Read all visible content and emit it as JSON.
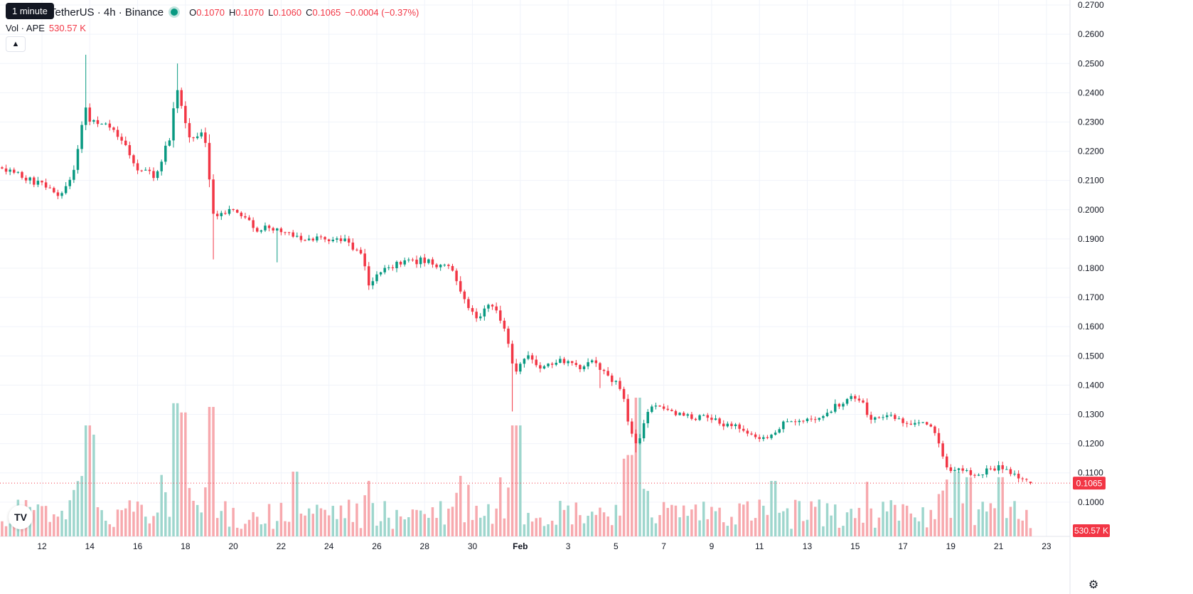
{
  "header": {
    "symbol_title": "TetherUS · 4h · Binance",
    "tooltip": "1 minute",
    "ohlc": {
      "o_label": "O",
      "o": "0.1070",
      "h_label": "H",
      "h": "0.1070",
      "l_label": "L",
      "l": "0.1060",
      "c_label": "C",
      "c": "0.1065"
    },
    "change": "−0.0004 (−0.37%)",
    "volume_label": "Vol · APE",
    "volume_value": "530.57 K"
  },
  "price_axis_badge": "0.1065",
  "volume_axis_badge": "530.57 K",
  "logo_text": "TV",
  "settings_icon": "gear-icon",
  "colors": {
    "up": "#089981",
    "down": "#F23645",
    "up_vol": "#9ED6CD",
    "down_vol": "#F7A9AE",
    "grid": "#F0F3FA"
  },
  "chart_data": {
    "type": "candlestick",
    "timeframe": "4h",
    "y_ticks": [
      "0.2700",
      "0.2600",
      "0.2500",
      "0.2400",
      "0.2300",
      "0.2200",
      "0.2100",
      "0.2000",
      "0.1900",
      "0.1800",
      "0.1700",
      "0.1600",
      "0.1500",
      "0.1400",
      "0.1300",
      "0.1200",
      "0.1100",
      "0.1000"
    ],
    "ylim": [
      0.0985,
      0.2705
    ],
    "x_ticks": [
      {
        "label": "12",
        "day": 12
      },
      {
        "label": "14",
        "day": 14
      },
      {
        "label": "16",
        "day": 16
      },
      {
        "label": "18",
        "day": 18
      },
      {
        "label": "20",
        "day": 20
      },
      {
        "label": "22",
        "day": 22
      },
      {
        "label": "24",
        "day": 24
      },
      {
        "label": "26",
        "day": 26
      },
      {
        "label": "28",
        "day": 28
      },
      {
        "label": "30",
        "day": 30
      },
      {
        "label": "Feb",
        "day": 32,
        "bold": true
      },
      {
        "label": "3",
        "day": 34
      },
      {
        "label": "5",
        "day": 36
      },
      {
        "label": "7",
        "day": 38
      },
      {
        "label": "9",
        "day": 40
      },
      {
        "label": "11",
        "day": 42
      },
      {
        "label": "13",
        "day": 44
      },
      {
        "label": "15",
        "day": 46
      },
      {
        "label": "17",
        "day": 48
      },
      {
        "label": "19",
        "day": 50
      },
      {
        "label": "21",
        "day": 52
      },
      {
        "label": "23",
        "day": 54
      }
    ],
    "start_day": 10.25,
    "last_price": 0.1065,
    "path": [
      [
        10.25,
        0.2145
      ],
      [
        11.0,
        0.2125
      ],
      [
        11.6,
        0.21
      ],
      [
        12.2,
        0.2085
      ],
      [
        12.7,
        0.205
      ],
      [
        13.1,
        0.208
      ],
      [
        13.45,
        0.215
      ],
      [
        13.65,
        0.225
      ],
      [
        13.9,
        0.236
      ],
      [
        14.1,
        0.23
      ],
      [
        14.5,
        0.229
      ],
      [
        14.8,
        0.23
      ],
      [
        15.1,
        0.226
      ],
      [
        15.4,
        0.223
      ],
      [
        15.7,
        0.22
      ],
      [
        16.1,
        0.213
      ],
      [
        16.5,
        0.215
      ],
      [
        16.8,
        0.211
      ],
      [
        17.2,
        0.22
      ],
      [
        17.5,
        0.226
      ],
      [
        17.65,
        0.242
      ],
      [
        17.9,
        0.237
      ],
      [
        18.2,
        0.225
      ],
      [
        18.6,
        0.225
      ],
      [
        18.85,
        0.227
      ],
      [
        19.05,
        0.212
      ],
      [
        19.25,
        0.198
      ],
      [
        19.7,
        0.199
      ],
      [
        20.1,
        0.201
      ],
      [
        20.5,
        0.198
      ],
      [
        21.1,
        0.193
      ],
      [
        21.6,
        0.194
      ],
      [
        22.4,
        0.192
      ],
      [
        23.1,
        0.19
      ],
      [
        24.0,
        0.19
      ],
      [
        24.8,
        0.189
      ],
      [
        25.5,
        0.185
      ],
      [
        25.8,
        0.173
      ],
      [
        26.2,
        0.179
      ],
      [
        26.8,
        0.181
      ],
      [
        27.5,
        0.182
      ],
      [
        28.2,
        0.183
      ],
      [
        28.8,
        0.18
      ],
      [
        29.2,
        0.181
      ],
      [
        29.5,
        0.174
      ],
      [
        29.9,
        0.166
      ],
      [
        30.3,
        0.162
      ],
      [
        30.7,
        0.168
      ],
      [
        31.1,
        0.166
      ],
      [
        31.5,
        0.158
      ],
      [
        31.8,
        0.144
      ],
      [
        32.4,
        0.151
      ],
      [
        32.9,
        0.145
      ],
      [
        33.4,
        0.148
      ],
      [
        34.0,
        0.148
      ],
      [
        34.5,
        0.146
      ],
      [
        35.1,
        0.148
      ],
      [
        35.6,
        0.144
      ],
      [
        36.1,
        0.141
      ],
      [
        36.4,
        0.135
      ],
      [
        36.6,
        0.127
      ],
      [
        36.85,
        0.12
      ],
      [
        37.1,
        0.122
      ],
      [
        37.4,
        0.131
      ],
      [
        38.0,
        0.133
      ],
      [
        38.5,
        0.13
      ],
      [
        39.2,
        0.129
      ],
      [
        39.8,
        0.129
      ],
      [
        40.5,
        0.127
      ],
      [
        41.3,
        0.125
      ],
      [
        42.3,
        0.121
      ],
      [
        43.2,
        0.128
      ],
      [
        43.9,
        0.127
      ],
      [
        44.6,
        0.129
      ],
      [
        45.3,
        0.133
      ],
      [
        46.2,
        0.1365
      ],
      [
        46.7,
        0.129
      ],
      [
        47.3,
        0.13
      ],
      [
        48.0,
        0.128
      ],
      [
        48.8,
        0.127
      ],
      [
        49.4,
        0.124
      ],
      [
        49.7,
        0.116
      ],
      [
        50.1,
        0.11
      ],
      [
        50.6,
        0.111
      ],
      [
        51.2,
        0.109
      ],
      [
        51.6,
        0.111
      ],
      [
        52.3,
        0.112
      ],
      [
        52.9,
        0.109
      ],
      [
        53.4,
        0.1065
      ]
    ],
    "volume_spikes": [
      [
        13.85,
        0.6
      ],
      [
        14.05,
        0.55
      ],
      [
        17.55,
        0.72
      ],
      [
        17.75,
        0.67
      ],
      [
        19.05,
        0.7
      ],
      [
        22.5,
        0.35
      ],
      [
        31.6,
        0.6
      ],
      [
        31.85,
        0.6
      ],
      [
        36.3,
        0.42
      ],
      [
        36.55,
        0.44
      ],
      [
        36.8,
        0.75
      ],
      [
        36.9,
        0.72
      ],
      [
        42.5,
        0.3
      ],
      [
        50.2,
        0.35
      ],
      [
        50.6,
        0.32
      ],
      [
        52.0,
        0.32
      ]
    ]
  }
}
